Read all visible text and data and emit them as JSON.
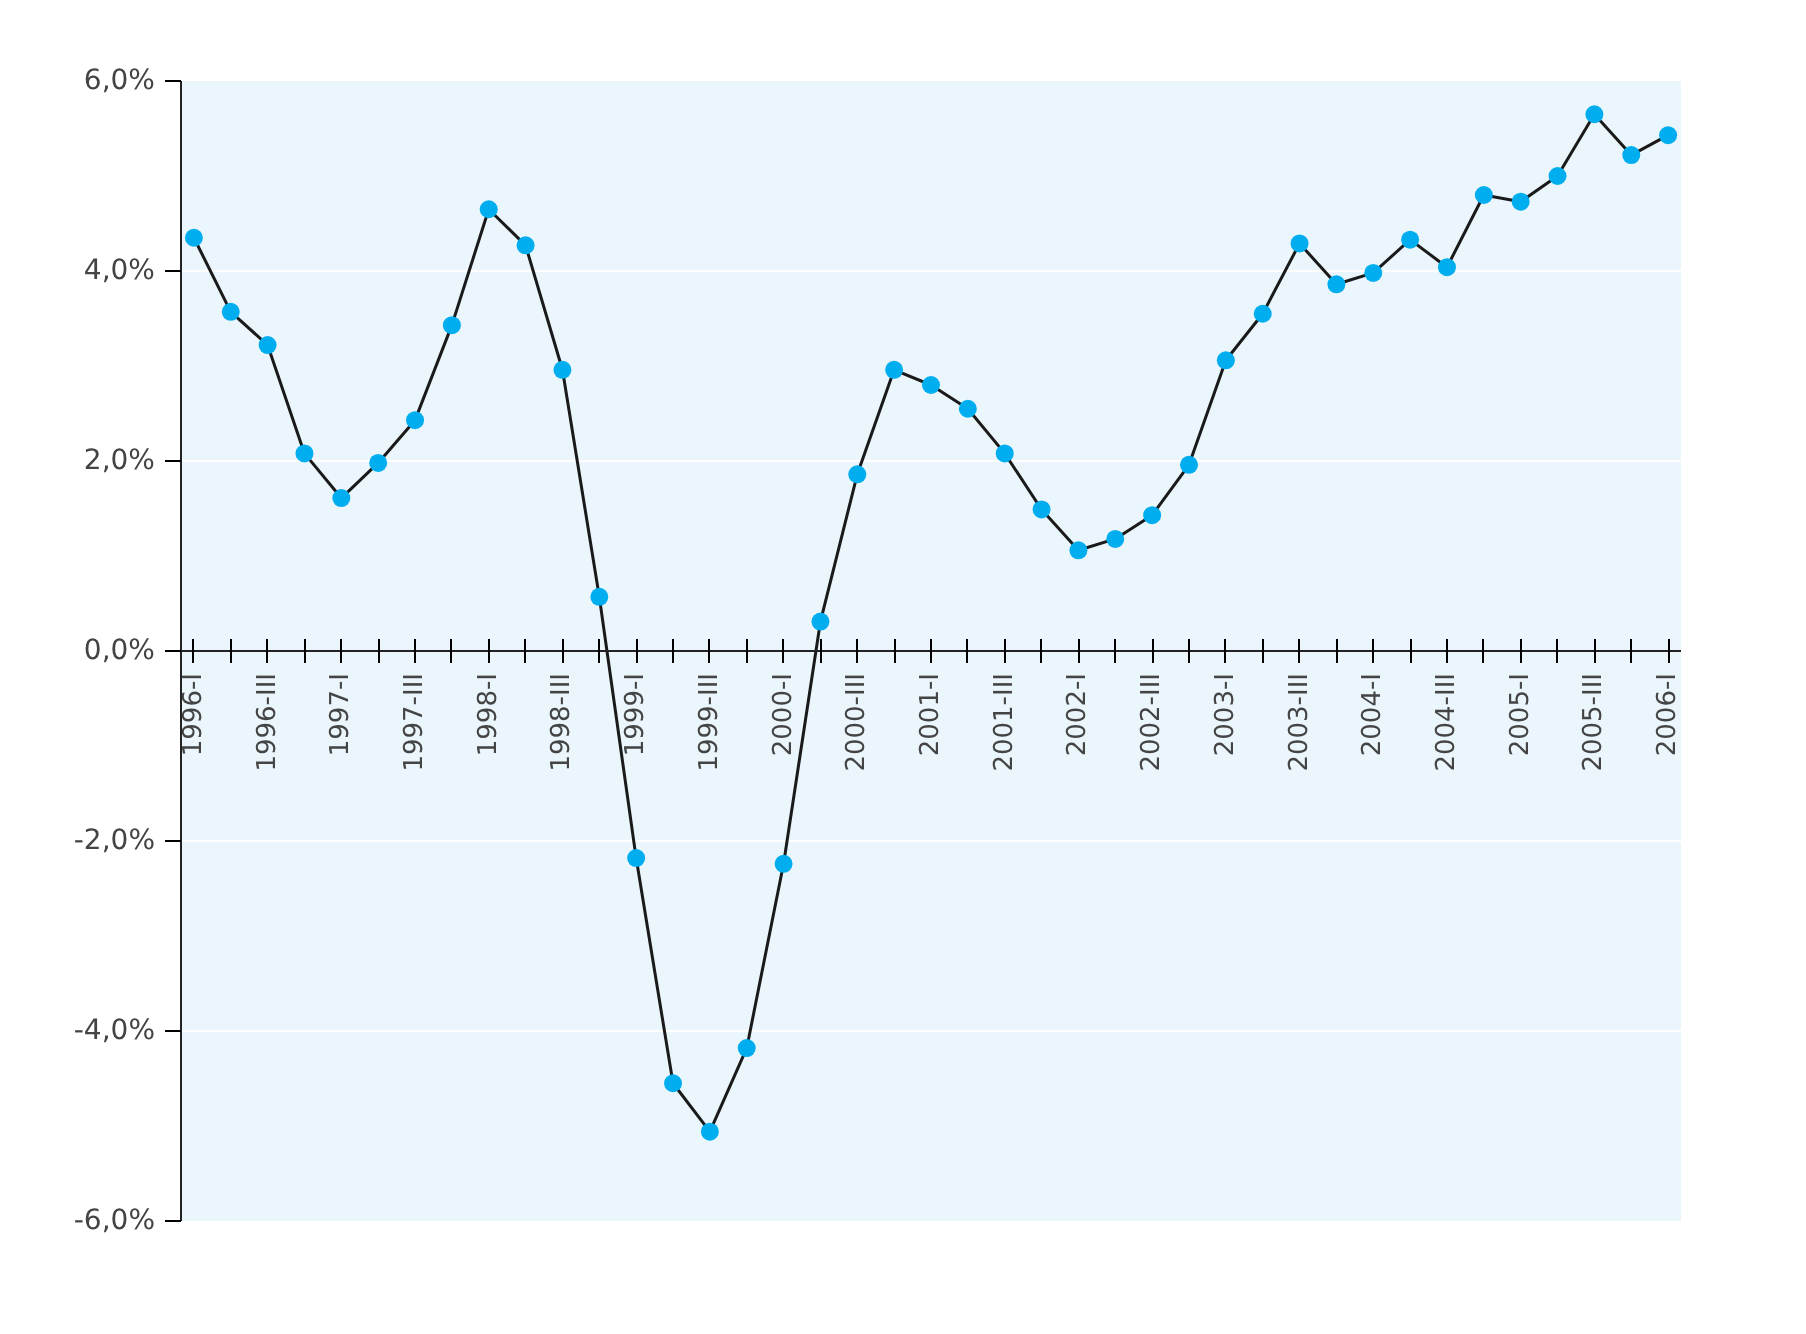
{
  "chart_data": {
    "type": "line",
    "categories": [
      "1996-I",
      null,
      "1996-III",
      null,
      "1997-I",
      null,
      "1997-III",
      null,
      "1998-I",
      null,
      "1998-III",
      null,
      "1999-I",
      null,
      "1999-III",
      null,
      "2000-I",
      null,
      "2000-III",
      null,
      "2001-I",
      null,
      "2001-III",
      null,
      "2002-I",
      null,
      "2002-III",
      null,
      "2003-I",
      null,
      "2003-III",
      null,
      "2004-I",
      null,
      "2004-III",
      null,
      "2005-I",
      null,
      "2005-III",
      null,
      "2006-I"
    ],
    "series": [
      {
        "color": "#00aeef",
        "values": [
          4.35,
          3.57,
          3.22,
          2.08,
          1.61,
          1.98,
          2.43,
          3.43,
          4.65,
          4.27,
          2.96,
          0.57,
          -2.18,
          -4.55,
          -5.06,
          -4.18,
          -2.24,
          0.31,
          1.86,
          2.96,
          2.8,
          2.55,
          2.08,
          1.49,
          1.06,
          1.18,
          1.43,
          1.96,
          3.06,
          3.55,
          4.29,
          3.86,
          3.98,
          4.33,
          4.04,
          4.8,
          4.73,
          5.0,
          5.65,
          5.22,
          5.43
        ]
      }
    ],
    "marker": "circle",
    "line_style": "solid",
    "ylim": [
      -6,
      6
    ],
    "yticks": [
      {
        "value": -6,
        "label": "-6,0%"
      },
      {
        "value": -4,
        "label": "-4,0%"
      },
      {
        "value": -2,
        "label": "-2,0%"
      },
      {
        "value": 0,
        "label": "0,0%"
      },
      {
        "value": 2,
        "label": "2,0%"
      },
      {
        "value": 4,
        "label": "4,0%"
      },
      {
        "value": 6,
        "label": "6,0%"
      }
    ],
    "grid": "y"
  }
}
